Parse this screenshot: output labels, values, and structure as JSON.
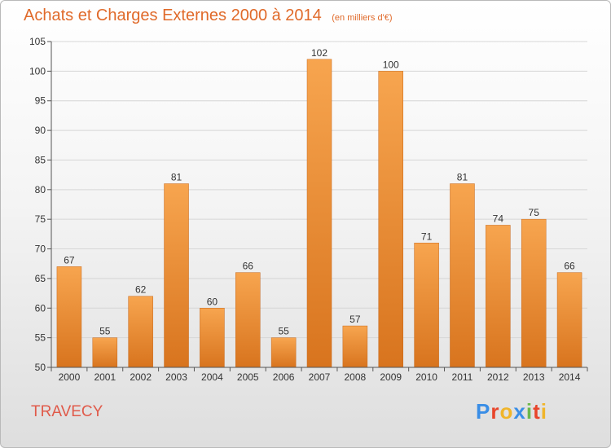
{
  "header": {
    "title": "Achats et Charges Externes 2000 à 2014",
    "subtitle": "(en milliers d'€)"
  },
  "footer": {
    "town": "TRAVECY",
    "logo_text": "Proxiti",
    "logo_colors": [
      "#3a8ee6",
      "#e8452b",
      "#f0b52a",
      "#3a8ee6",
      "#6bb84a",
      "#e8452b",
      "#f0b52a"
    ]
  },
  "colors": {
    "bar_light": "#f7a54f",
    "bar_dark": "#d8741e",
    "accent": "#e06a2a",
    "grid": "#d6d6d6"
  },
  "chart_data": {
    "type": "bar",
    "categories": [
      "2000",
      "2001",
      "2002",
      "2003",
      "2004",
      "2005",
      "2006",
      "2007",
      "2008",
      "2009",
      "2010",
      "2011",
      "2012",
      "2013",
      "2014"
    ],
    "values": [
      67,
      55,
      62,
      81,
      60,
      66,
      55,
      102,
      57,
      100,
      71,
      81,
      74,
      75,
      66
    ],
    "title": "Achats et Charges Externes 2000 à 2014",
    "subtitle": "(en milliers d'€)",
    "xlabel": "",
    "ylabel": "",
    "ylim": [
      50,
      105
    ],
    "yticks": [
      50,
      55,
      60,
      65,
      70,
      75,
      80,
      85,
      90,
      95,
      100,
      105
    ],
    "grid": true,
    "data_labels": true
  }
}
